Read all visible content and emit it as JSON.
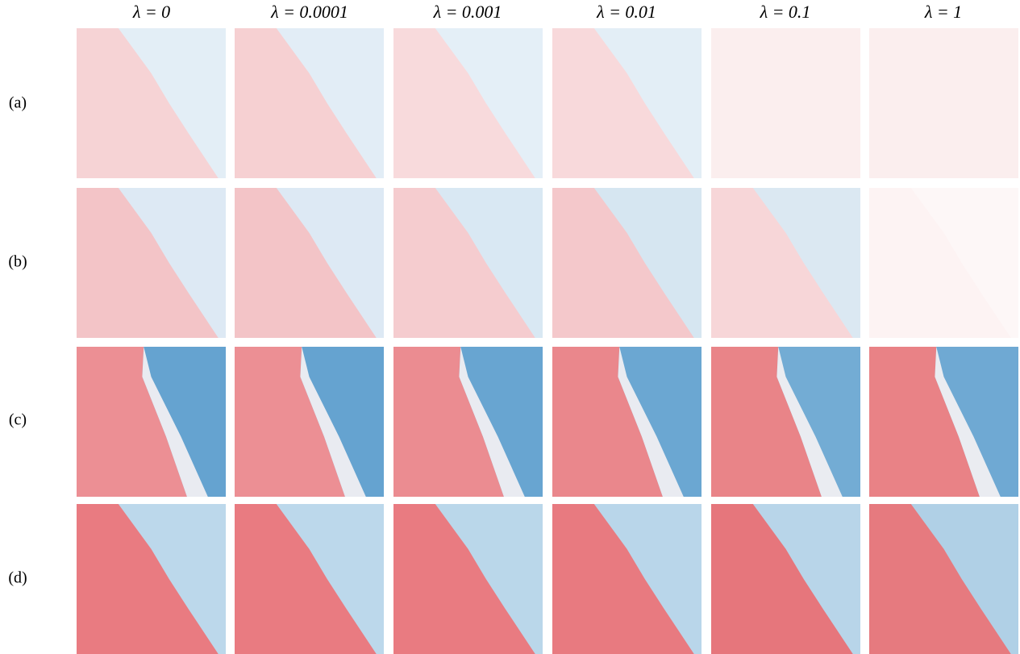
{
  "columns": [
    "λ = 0",
    "λ = 0.0001",
    "λ = 0.001",
    "λ = 0.01",
    "λ = 0.1",
    "λ = 1"
  ],
  "rows": [
    "(a)",
    "(b)",
    "(c)",
    "(d)"
  ]
}
